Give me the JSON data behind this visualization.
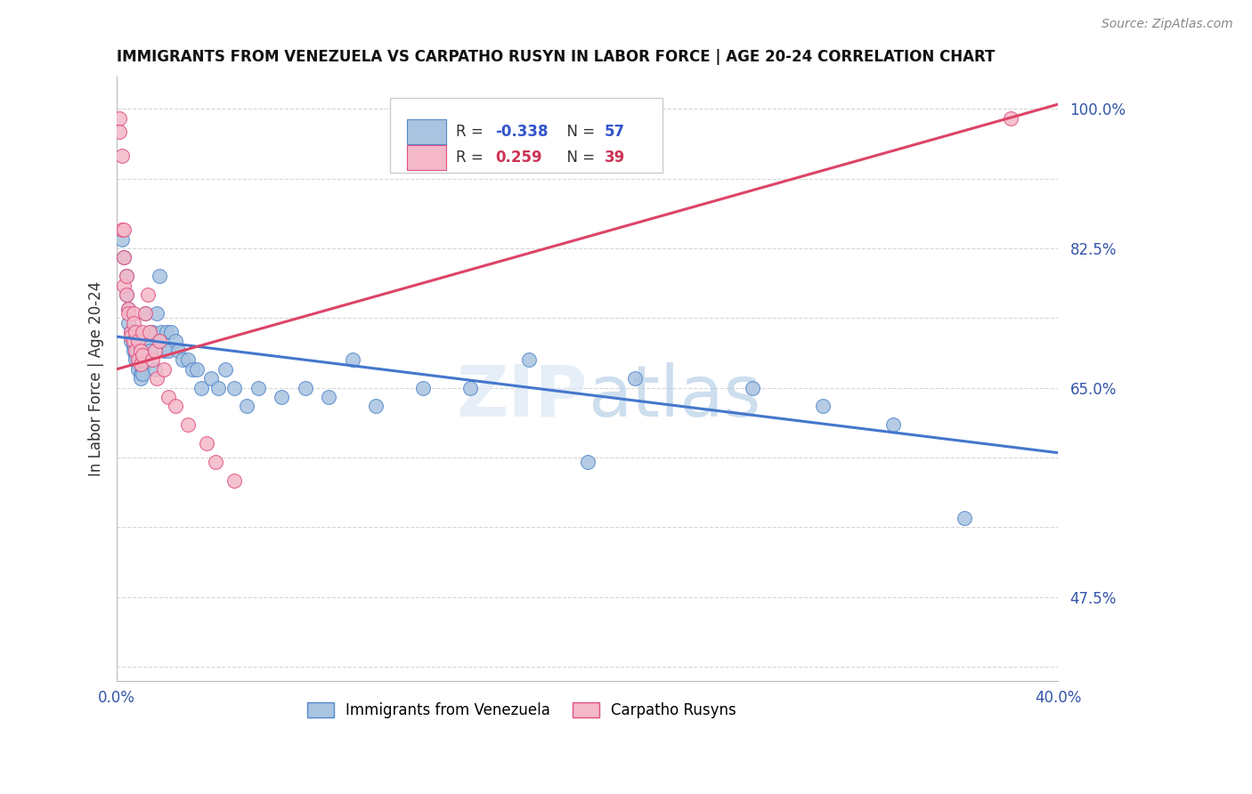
{
  "title": "IMMIGRANTS FROM VENEZUELA VS CARPATHO RUSYN IN LABOR FORCE | AGE 20-24 CORRELATION CHART",
  "source": "Source: ZipAtlas.com",
  "ylabel": "In Labor Force | Age 20-24",
  "x_min": 0.0,
  "x_max": 0.4,
  "y_min": 0.385,
  "y_max": 1.035,
  "ytick_vals": [
    0.4,
    0.475,
    0.55,
    0.625,
    0.7,
    0.775,
    0.85,
    0.925,
    1.0
  ],
  "ytick_labels": [
    "",
    "47.5%",
    "",
    "",
    "65.0%",
    "",
    "82.5%",
    "",
    "100.0%"
  ],
  "xtick_vals": [
    0.0,
    0.05,
    0.1,
    0.15,
    0.2,
    0.25,
    0.3,
    0.35,
    0.4
  ],
  "xtick_labels": [
    "0.0%",
    "",
    "",
    "",
    "",
    "",
    "",
    "",
    "40.0%"
  ],
  "blue_label": "Immigrants from Venezuela",
  "pink_label": "Carpatho Rusyns",
  "blue_R": -0.338,
  "blue_N": 57,
  "pink_R": 0.259,
  "pink_N": 39,
  "blue_color": "#a8c4e0",
  "pink_color": "#f4b8c8",
  "blue_edge_color": "#5588cc",
  "pink_edge_color": "#e05080",
  "blue_line_color": "#4477cc",
  "pink_line_color": "#dd4466",
  "grid_color": "#cccccc",
  "blue_line_y0": 0.755,
  "blue_line_y1": 0.63,
  "pink_line_y0": 0.72,
  "pink_line_y1": 1.005,
  "blue_scatter_x": [
    0.002,
    0.003,
    0.004,
    0.004,
    0.005,
    0.005,
    0.006,
    0.006,
    0.007,
    0.007,
    0.008,
    0.008,
    0.009,
    0.009,
    0.01,
    0.01,
    0.011,
    0.011,
    0.012,
    0.013,
    0.014,
    0.015,
    0.016,
    0.017,
    0.018,
    0.019,
    0.02,
    0.021,
    0.022,
    0.023,
    0.025,
    0.026,
    0.028,
    0.03,
    0.032,
    0.034,
    0.036,
    0.04,
    0.043,
    0.046,
    0.05,
    0.055,
    0.06,
    0.07,
    0.08,
    0.09,
    0.1,
    0.11,
    0.13,
    0.15,
    0.175,
    0.2,
    0.22,
    0.27,
    0.3,
    0.33,
    0.36
  ],
  "blue_scatter_y": [
    0.86,
    0.84,
    0.82,
    0.8,
    0.785,
    0.77,
    0.76,
    0.75,
    0.745,
    0.74,
    0.735,
    0.73,
    0.725,
    0.72,
    0.715,
    0.71,
    0.72,
    0.715,
    0.78,
    0.75,
    0.74,
    0.76,
    0.72,
    0.78,
    0.82,
    0.76,
    0.74,
    0.76,
    0.74,
    0.76,
    0.75,
    0.74,
    0.73,
    0.73,
    0.72,
    0.72,
    0.7,
    0.71,
    0.7,
    0.72,
    0.7,
    0.68,
    0.7,
    0.69,
    0.7,
    0.69,
    0.73,
    0.68,
    0.7,
    0.7,
    0.73,
    0.62,
    0.71,
    0.7,
    0.68,
    0.66,
    0.56
  ],
  "pink_scatter_x": [
    0.001,
    0.001,
    0.002,
    0.002,
    0.003,
    0.003,
    0.003,
    0.004,
    0.004,
    0.005,
    0.005,
    0.006,
    0.006,
    0.007,
    0.007,
    0.007,
    0.008,
    0.008,
    0.009,
    0.009,
    0.01,
    0.01,
    0.011,
    0.011,
    0.012,
    0.013,
    0.014,
    0.015,
    0.016,
    0.017,
    0.018,
    0.02,
    0.022,
    0.025,
    0.03,
    0.038,
    0.042,
    0.05,
    0.38
  ],
  "pink_scatter_y": [
    0.99,
    0.975,
    0.95,
    0.87,
    0.87,
    0.84,
    0.81,
    0.82,
    0.8,
    0.785,
    0.78,
    0.76,
    0.755,
    0.78,
    0.77,
    0.75,
    0.76,
    0.74,
    0.75,
    0.73,
    0.74,
    0.725,
    0.76,
    0.735,
    0.78,
    0.8,
    0.76,
    0.73,
    0.74,
    0.71,
    0.75,
    0.72,
    0.69,
    0.68,
    0.66,
    0.64,
    0.62,
    0.6,
    0.99
  ]
}
